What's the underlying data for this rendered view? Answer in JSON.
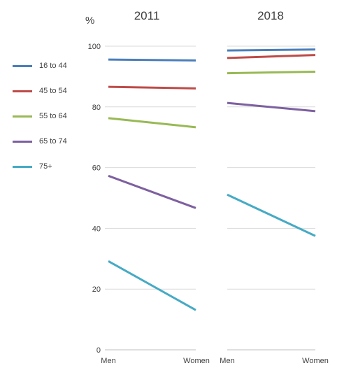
{
  "unit_label": "%",
  "chart_data": {
    "type": "line",
    "title": "",
    "y_ticks": [
      "0",
      "20",
      "40",
      "60",
      "80",
      "100"
    ],
    "ylim": [
      0,
      100
    ],
    "grid": true,
    "legend_position": "left",
    "series": [
      {
        "name": "16 to 44",
        "color": "#4a7ebb"
      },
      {
        "name": "45 to 54",
        "color": "#be4b48"
      },
      {
        "name": "55 to 64",
        "color": "#98b954"
      },
      {
        "name": "65 to 74",
        "color": "#7d60a0"
      },
      {
        "name": "75+",
        "color": "#46aac5"
      }
    ],
    "panels": [
      {
        "year": "2011",
        "categories": [
          "Men",
          "Women"
        ],
        "values": {
          "16 to 44": [
            95.6,
            95.3
          ],
          "45 to 54": [
            86.6,
            86.1
          ],
          "55 to 64": [
            76.3,
            73.3
          ],
          "65 to 74": [
            57.3,
            46.7
          ],
          "75+": [
            29.2,
            13.1
          ]
        }
      },
      {
        "year": "2018",
        "categories": [
          "Men",
          "Women"
        ],
        "values": {
          "16 to 44": [
            98.6,
            98.9
          ],
          "45 to 54": [
            96.1,
            97.1
          ],
          "55 to 64": [
            91.1,
            91.6
          ],
          "65 to 74": [
            81.3,
            78.6
          ],
          "75+": [
            51.1,
            37.5
          ]
        }
      }
    ]
  }
}
